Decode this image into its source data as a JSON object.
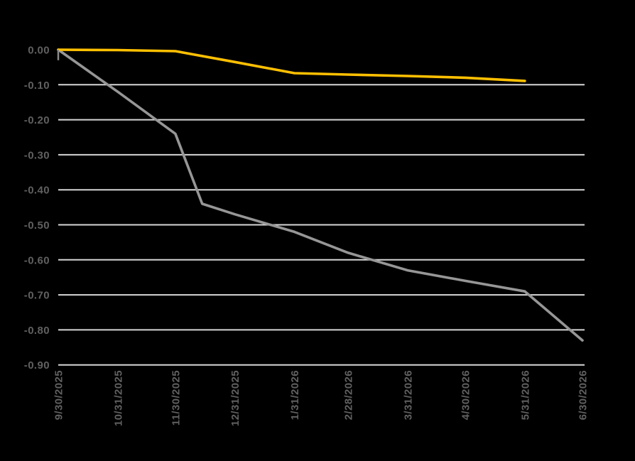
{
  "chart_data": {
    "type": "line",
    "title": "",
    "legend": "none",
    "background_color": "#000000",
    "grid_color": "#D6D6D6",
    "label_color": "#606060",
    "grid": "horizontal-only",
    "y_axis": {
      "min": -0.9,
      "max": 0.0,
      "tick_step": 0.1,
      "tick_values": [
        0.0,
        -0.1,
        -0.2,
        -0.3,
        -0.4,
        -0.5,
        -0.6,
        -0.7,
        -0.8,
        -0.9
      ],
      "tick_labels": [
        "0.00",
        "-0.10",
        "-0.20",
        "-0.30",
        "-0.40",
        "-0.50",
        "-0.60",
        "-0.70",
        "-0.80",
        "-0.90"
      ]
    },
    "x_axis": {
      "type": "date",
      "tick_labels": [
        "9/30/2025",
        "10/31/2025",
        "11/30/2025",
        "12/31/2025",
        "1/31/2026",
        "2/28/2026",
        "3/31/2026",
        "4/30/2026",
        "5/31/2026",
        "6/30/2026"
      ],
      "tick_days": [
        0,
        31,
        61,
        92,
        123,
        151,
        182,
        212,
        243,
        273
      ],
      "label_rotation_deg": -90
    },
    "series": [
      {
        "name": "gray-series",
        "color": "#969696",
        "points": [
          {
            "date": "9/30/2025",
            "day": 0,
            "value": 0.0
          },
          {
            "date": "10/31/2025",
            "day": 31,
            "value": -0.12
          },
          {
            "date": "11/30/2025",
            "day": 61,
            "value": -0.24
          },
          {
            "date": "12/14/2025",
            "day": 75,
            "value": -0.44
          },
          {
            "date": "12/31/2025",
            "day": 92,
            "value": -0.47
          },
          {
            "date": "1/31/2026",
            "day": 123,
            "value": -0.52
          },
          {
            "date": "2/28/2026",
            "day": 151,
            "value": -0.58
          },
          {
            "date": "3/31/2026",
            "day": 182,
            "value": -0.63
          },
          {
            "date": "4/30/2026",
            "day": 212,
            "value": -0.66
          },
          {
            "date": "5/31/2026",
            "day": 243,
            "value": -0.69
          },
          {
            "date": "6/30/2026",
            "day": 273,
            "value": -0.83
          }
        ]
      },
      {
        "name": "gold-series",
        "color": "#FFC000",
        "points": [
          {
            "date": "9/30/2025",
            "day": 0,
            "value": 0.0
          },
          {
            "date": "10/31/2025",
            "day": 31,
            "value": -0.001
          },
          {
            "date": "11/30/2025",
            "day": 61,
            "value": -0.004
          },
          {
            "date": "12/31/2025",
            "day": 92,
            "value": -0.035
          },
          {
            "date": "1/31/2026",
            "day": 123,
            "value": -0.067
          },
          {
            "date": "2/28/2026",
            "day": 151,
            "value": -0.071
          },
          {
            "date": "3/31/2026",
            "day": 182,
            "value": -0.075
          },
          {
            "date": "4/30/2026",
            "day": 212,
            "value": -0.08
          },
          {
            "date": "5/31/2026",
            "day": 243,
            "value": -0.089
          }
        ]
      }
    ],
    "origin_tick": {
      "value_top": 0.0,
      "value_bottom": -0.03,
      "color": "#8A8A8A"
    }
  }
}
